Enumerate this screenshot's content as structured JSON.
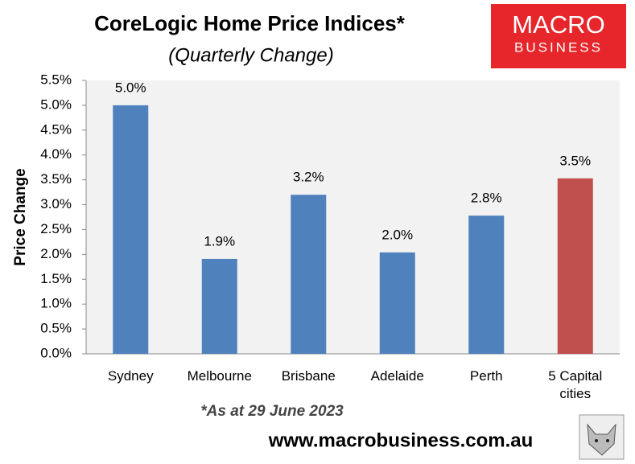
{
  "chart_data": {
    "type": "bar",
    "title": "CoreLogic Home Price Indices*",
    "subtitle": "(Quarterly Change)",
    "y_label": "Price Change",
    "categories": [
      "Sydney",
      "Melbourne",
      "Brisbane",
      "Adelaide",
      "Perth",
      "5 Capital cities"
    ],
    "values": [
      5.0,
      1.91,
      3.2,
      2.04,
      2.78,
      3.53
    ],
    "value_labels": [
      "5.0%",
      "1.9%",
      "3.2%",
      "2.0%",
      "2.8%",
      "3.5%"
    ],
    "colors": [
      "#4f81bd",
      "#4f81bd",
      "#4f81bd",
      "#4f81bd",
      "#4f81bd",
      "#c0504d"
    ],
    "ylim": [
      0,
      5.5
    ],
    "yticks": [
      {
        "value": 0,
        "label": "0.0%"
      },
      {
        "value": 0.5,
        "label": "0.5%"
      },
      {
        "value": 1,
        "label": "1.0%"
      },
      {
        "value": 1.5,
        "label": "1.5%"
      },
      {
        "value": 2,
        "label": "2.0%"
      },
      {
        "value": 2.5,
        "label": "2.5%"
      },
      {
        "value": 3,
        "label": "3.0%"
      },
      {
        "value": 3.5,
        "label": "3.5%"
      },
      {
        "value": 4,
        "label": "4.0%"
      },
      {
        "value": 4.5,
        "label": "4.5%"
      },
      {
        "value": 5,
        "label": "5.0%"
      },
      {
        "value": 5.5,
        "label": "5.5%"
      }
    ],
    "grid": false,
    "footnote": "*As at 29 June 2023",
    "source": "www.macrobusiness.com.au",
    "logo": {
      "line1": "MACRO",
      "line2": "BUSINESS"
    }
  }
}
